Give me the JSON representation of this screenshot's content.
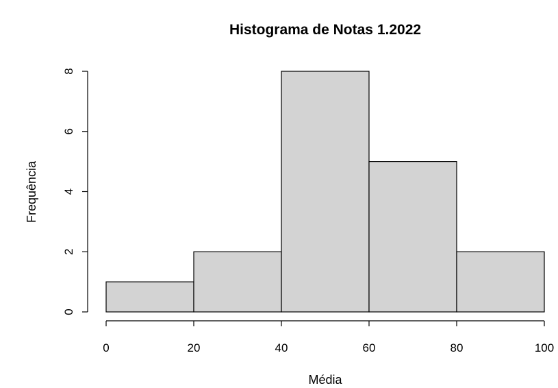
{
  "chart_data": {
    "type": "bar",
    "title": "Histograma de Notas 1.2022",
    "xlabel": "Média",
    "ylabel": "Frequência",
    "bins": [
      [
        0,
        20
      ],
      [
        20,
        40
      ],
      [
        40,
        60
      ],
      [
        60,
        80
      ],
      [
        80,
        100
      ]
    ],
    "values": [
      1,
      2,
      8,
      5,
      2
    ],
    "xlim": [
      0,
      100
    ],
    "ylim": [
      0,
      8
    ],
    "x_ticks": [
      "0",
      "20",
      "40",
      "60",
      "80",
      "100"
    ],
    "y_ticks": [
      "0",
      "2",
      "4",
      "6",
      "8"
    ],
    "bar_color": "#d3d3d3",
    "grid": false
  }
}
